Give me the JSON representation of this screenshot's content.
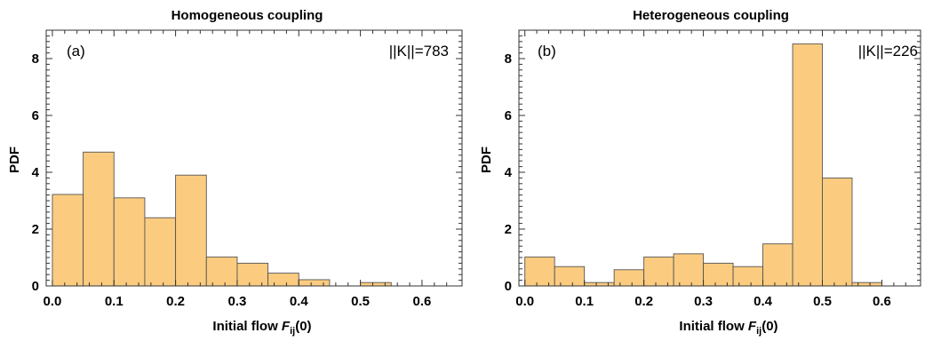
{
  "chart_data": [
    {
      "type": "bar",
      "title": "Homogeneous coupling",
      "panel_label": "(a)",
      "annotation": "||K||=783",
      "xlabel_prefix": "Initial flow ",
      "xlabel_var": "F",
      "xlabel_sub": "ij",
      "xlabel_suffix": "(0)",
      "ylabel": "PDF",
      "xlim": [
        -0.01,
        0.665
      ],
      "ylim": [
        0,
        9
      ],
      "xticks": [
        0.0,
        0.1,
        0.2,
        0.3,
        0.4,
        0.5,
        0.6
      ],
      "xtick_labels": [
        "0.0",
        "0.1",
        "0.2",
        "0.3",
        "0.4",
        "0.5",
        "0.6"
      ],
      "yticks": [
        0,
        2,
        4,
        6,
        8
      ],
      "ytick_labels": [
        "0",
        "2",
        "4",
        "6",
        "8"
      ],
      "bins": [
        {
          "x0": 0.0,
          "x1": 0.05,
          "value": 3.22
        },
        {
          "x0": 0.05,
          "x1": 0.1,
          "value": 4.71
        },
        {
          "x0": 0.1,
          "x1": 0.15,
          "value": 3.1
        },
        {
          "x0": 0.15,
          "x1": 0.2,
          "value": 2.4
        },
        {
          "x0": 0.2,
          "x1": 0.25,
          "value": 3.9
        },
        {
          "x0": 0.25,
          "x1": 0.3,
          "value": 1.02
        },
        {
          "x0": 0.3,
          "x1": 0.35,
          "value": 0.8
        },
        {
          "x0": 0.35,
          "x1": 0.4,
          "value": 0.45
        },
        {
          "x0": 0.4,
          "x1": 0.45,
          "value": 0.22
        },
        {
          "x0": 0.5,
          "x1": 0.55,
          "value": 0.12
        }
      ]
    },
    {
      "type": "bar",
      "title": "Heterogeneous coupling",
      "panel_label": "(b)",
      "annotation": "||K||=226",
      "xlabel_prefix": "Initial flow ",
      "xlabel_var": "F",
      "xlabel_sub": "ij",
      "xlabel_suffix": "(0)",
      "ylabel": "PDF",
      "xlim": [
        -0.01,
        0.665
      ],
      "ylim": [
        0,
        9
      ],
      "xticks": [
        0.0,
        0.1,
        0.2,
        0.3,
        0.4,
        0.5,
        0.6
      ],
      "xtick_labels": [
        "0.0",
        "0.1",
        "0.2",
        "0.3",
        "0.4",
        "0.5",
        "0.6"
      ],
      "yticks": [
        0,
        2,
        4,
        6,
        8
      ],
      "ytick_labels": [
        "0",
        "2",
        "4",
        "6",
        "8"
      ],
      "bins": [
        {
          "x0": 0.0,
          "x1": 0.05,
          "value": 1.02
        },
        {
          "x0": 0.05,
          "x1": 0.1,
          "value": 0.68
        },
        {
          "x0": 0.1,
          "x1": 0.15,
          "value": 0.12
        },
        {
          "x0": 0.15,
          "x1": 0.2,
          "value": 0.57
        },
        {
          "x0": 0.2,
          "x1": 0.25,
          "value": 1.02
        },
        {
          "x0": 0.25,
          "x1": 0.3,
          "value": 1.13
        },
        {
          "x0": 0.3,
          "x1": 0.35,
          "value": 0.8
        },
        {
          "x0": 0.35,
          "x1": 0.4,
          "value": 0.68
        },
        {
          "x0": 0.4,
          "x1": 0.45,
          "value": 1.48
        },
        {
          "x0": 0.45,
          "x1": 0.5,
          "value": 8.52
        },
        {
          "x0": 0.5,
          "x1": 0.55,
          "value": 3.8
        },
        {
          "x0": 0.55,
          "x1": 0.6,
          "value": 0.12
        }
      ]
    }
  ],
  "colors": {
    "bar_fill": "#fbcc80",
    "bar_stroke": "#555555",
    "frame": "#333333"
  }
}
